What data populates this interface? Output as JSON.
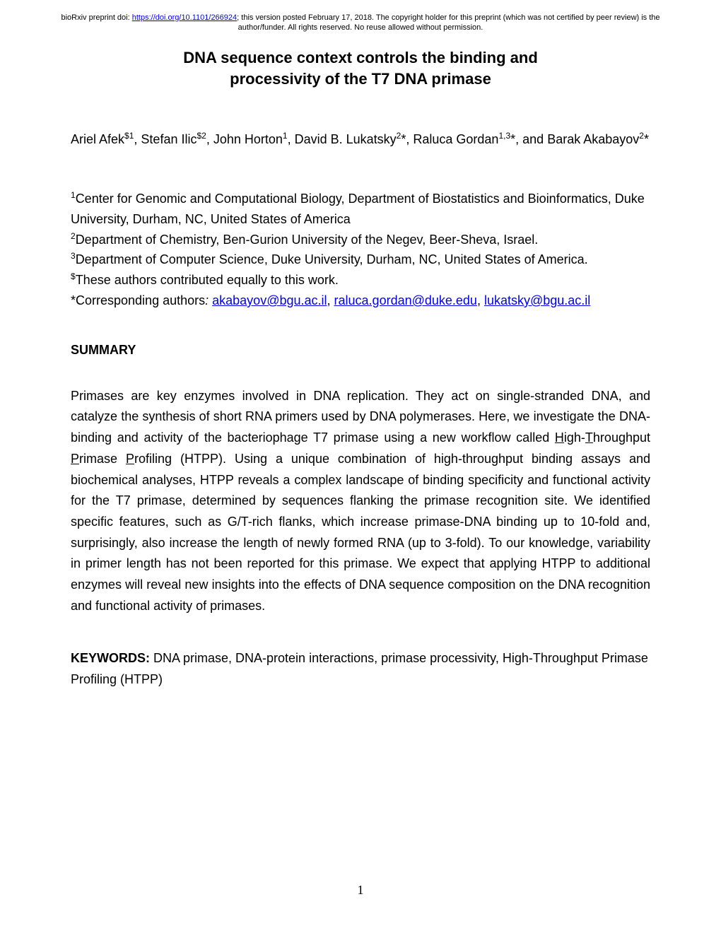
{
  "preprint": {
    "prefix": "bioRxiv preprint doi: ",
    "doi_url": "https://doi.org/10.1101/266924",
    "suffix": "; this version posted February 17, 2018. The copyright holder for this preprint (which was not certified by peer review) is the author/funder. All rights reserved. No reuse allowed without permission."
  },
  "title": {
    "line1": "DNA sequence context controls the binding and",
    "line2": "processivity of the T7 DNA primase"
  },
  "authors": {
    "a1_name": "Ariel Afek",
    "a1_sup": "$1",
    "a2_name": "Stefan Ilic",
    "a2_sup": "$2",
    "a3_name": "John Horton",
    "a3_sup": "1",
    "a4_name": "David B. Lukatsky",
    "a4_sup": "2",
    "a5_name": "Raluca Gordan",
    "a5_sup": "1,3",
    "a6_prefix": "and Barak Akabayov",
    "a6_sup": "2"
  },
  "affiliations": {
    "aff1_sup": "1",
    "aff1_text": "Center for Genomic and Computational Biology, Department of Biostatistics and Bioinformatics, Duke University, Durham, NC, United States of America",
    "aff2_sup": "2",
    "aff2_text": "Department of Chemistry, Ben-Gurion University of the Negev, Beer-Sheva, Israel.",
    "aff3_sup": "3",
    "aff3_text": "Department of Computer Science, Duke University, Durham, NC, United States of America.",
    "aff4_sup": "$",
    "aff4_text": "These authors contributed equally to this work.",
    "corr_prefix": "*Corresponding authors",
    "corr_colon": ": ",
    "email1": "akabayov@bgu.ac.il",
    "email2": "raluca.gordan@duke.edu",
    "email3": "lukatsky@bgu.ac.il"
  },
  "summary": {
    "heading": "SUMMARY",
    "p1": "Primases are key enzymes involved in DNA replication. They act on single-stranded DNA, and catalyze the synthesis of short RNA primers used by DNA polymerases. Here, we investigate the DNA-binding and activity of the bacteriophage T7 primase using a new workflow called ",
    "u1": "H",
    "p2": "igh-",
    "u2": "T",
    "p3": "hroughput ",
    "u3": "P",
    "p4": "rimase ",
    "u4": "P",
    "p5": "rofiling (HTPP). Using a unique combination of high-throughput binding assays and biochemical analyses, HTPP reveals a complex landscape of binding specificity and functional activity for the T7 primase, determined by sequences flanking the primase recognition site. We identified specific features, such as G/T-rich flanks, which increase primase-DNA binding up to 10-fold and, surprisingly, also increase the length of newly formed RNA (up to 3-fold). To our knowledge, variability in primer length has not been reported for this primase. We expect that applying HTPP to additional enzymes will reveal new insights into the effects of DNA sequence composition on the DNA recognition and functional activity of primases."
  },
  "keywords": {
    "label": "KEYWORDS: ",
    "text": "DNA primase, DNA-protein interactions, primase processivity, High-Throughput Primase Profiling (HTPP)"
  },
  "page_number": "1"
}
